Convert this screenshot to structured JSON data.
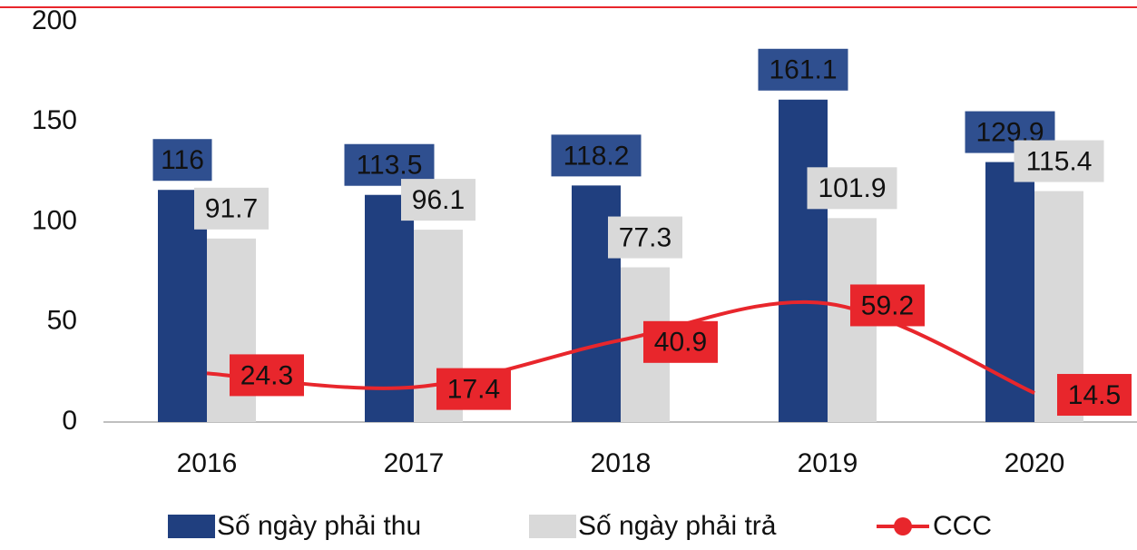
{
  "chart_data": {
    "type": "bar",
    "categories": [
      "2016",
      "2017",
      "2018",
      "2019",
      "2020"
    ],
    "series": [
      {
        "name": "Số ngày phải thu",
        "type": "bar",
        "color": "#203f7f",
        "values": [
          116,
          113.5,
          118.2,
          161.1,
          129.9
        ]
      },
      {
        "name": "Số ngày phải trả",
        "type": "bar",
        "color": "#d9d9d9",
        "values": [
          91.7,
          96.1,
          77.3,
          101.9,
          115.4
        ]
      },
      {
        "name": "CCC",
        "type": "line",
        "color": "#e8262c",
        "values": [
          24.3,
          17.4,
          40.9,
          59.2,
          14.5
        ]
      }
    ],
    "ylim": [
      0,
      200
    ],
    "yticks": [
      0,
      50,
      100,
      150,
      200
    ],
    "grid": false
  }
}
